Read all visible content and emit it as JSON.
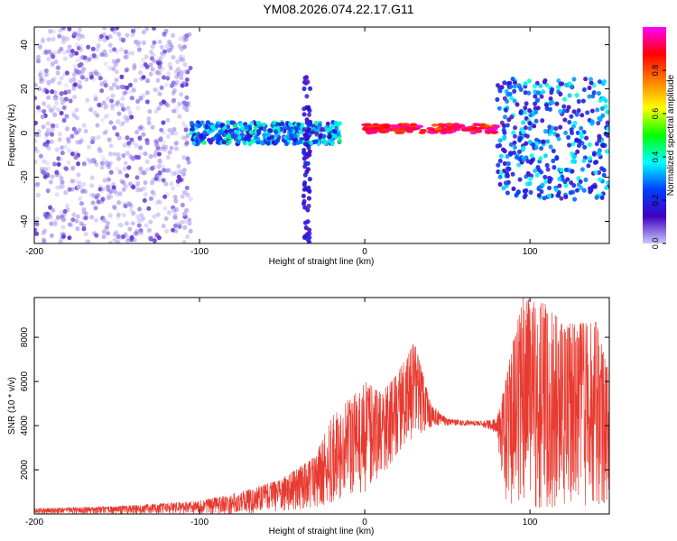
{
  "title": "YM08.2026.074.22.17.G11",
  "chart_data": [
    {
      "type": "heatmap",
      "xlabel": "Height of straight line (km)",
      "ylabel": "Frequency (Hz)",
      "xlim": [
        -200,
        148
      ],
      "ylim": [
        -50,
        48
      ],
      "xticks": [
        -200,
        -100,
        0,
        100
      ],
      "yticks": [
        -40,
        -20,
        0,
        20,
        40
      ],
      "colorbar": {
        "label": "Normalized spectral amplitude",
        "range": [
          0,
          1
        ],
        "ticks": [
          "0.0",
          "0.2",
          "0.4",
          "0.6",
          "0.8"
        ],
        "stops": [
          "#c8c8ff",
          "#4000c0",
          "#0040ff",
          "#00ffff",
          "#00ff00",
          "#ffff00",
          "#ff8000",
          "#ff0000",
          "#ff00ff"
        ]
      },
      "regions": [
        {
          "name": "noise-wide-band",
          "x": [
            -200,
            -105
          ],
          "y": [
            -50,
            48
          ],
          "amplitude": [
            0.0,
            0.1
          ]
        },
        {
          "name": "central-band",
          "x": [
            -105,
            -15
          ],
          "y_center": 0,
          "y_halfwidth": 5,
          "amplitude": [
            0.1,
            0.45
          ]
        },
        {
          "name": "spike",
          "x": [
            -37,
            -33
          ],
          "y": [
            -50,
            28
          ],
          "amplitude": [
            0.1,
            0.2
          ]
        },
        {
          "name": "strong-tone",
          "x": [
            0,
            80
          ],
          "y_center": 2,
          "y_halfwidth": 2,
          "amplitude": [
            0.8,
            1.0
          ]
        },
        {
          "name": "broadband-high",
          "x": [
            80,
            148
          ],
          "y": [
            -30,
            25
          ],
          "amplitude": [
            0.1,
            0.4
          ]
        }
      ]
    },
    {
      "type": "line",
      "xlabel": "Height of straight line (km)",
      "ylabel": "SNR (10 * v/v)",
      "xlim": [
        -200,
        148
      ],
      "ylim": [
        0,
        9800
      ],
      "xticks": [
        -200,
        -100,
        0,
        100
      ],
      "yticks": [
        2000,
        4000,
        6000,
        8000
      ],
      "color": "#e83a30",
      "envelope": [
        {
          "x": -200,
          "low": 0,
          "high": 250
        },
        {
          "x": -150,
          "low": 0,
          "high": 350
        },
        {
          "x": -100,
          "low": 0,
          "high": 600
        },
        {
          "x": -75,
          "low": 0,
          "high": 1000
        },
        {
          "x": -50,
          "low": 100,
          "high": 1600
        },
        {
          "x": -30,
          "low": 300,
          "high": 2600
        },
        {
          "x": -20,
          "low": 500,
          "high": 4400
        },
        {
          "x": -10,
          "low": 800,
          "high": 5200
        },
        {
          "x": 0,
          "low": 1000,
          "high": 6000
        },
        {
          "x": 10,
          "low": 1500,
          "high": 5500
        },
        {
          "x": 20,
          "low": 2800,
          "high": 6400
        },
        {
          "x": 30,
          "low": 3500,
          "high": 7800
        },
        {
          "x": 40,
          "low": 3900,
          "high": 5000
        },
        {
          "x": 50,
          "low": 4000,
          "high": 4300
        },
        {
          "x": 70,
          "low": 4000,
          "high": 4200
        },
        {
          "x": 80,
          "low": 3600,
          "high": 4300
        },
        {
          "x": 85,
          "low": 300,
          "high": 6000
        },
        {
          "x": 95,
          "low": 200,
          "high": 9800
        },
        {
          "x": 110,
          "low": 300,
          "high": 9500
        },
        {
          "x": 120,
          "low": 300,
          "high": 8600
        },
        {
          "x": 140,
          "low": 400,
          "high": 8700
        },
        {
          "x": 148,
          "low": 500,
          "high": 6500
        }
      ]
    }
  ]
}
